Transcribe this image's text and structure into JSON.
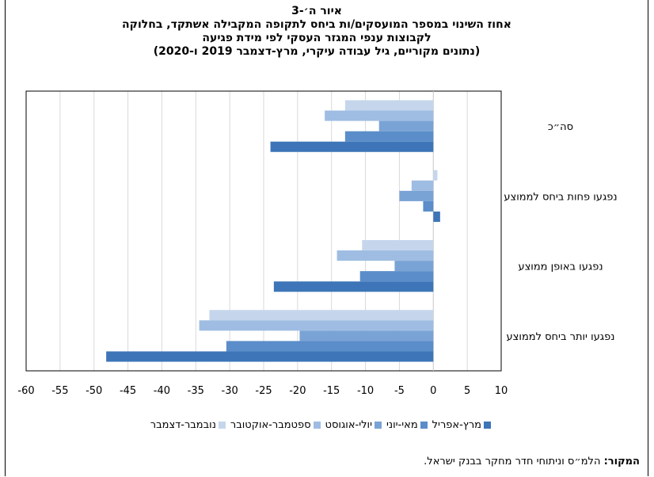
{
  "title": {
    "line1": "איור ה׳-3",
    "line2": "אחוז השינוי במספר המועסקים/ות ביחס לתקופה המקבילה אשתקד, בחלוקה",
    "line3": "לקבוצות ענפי המגזר העסקי לפי מידת פגיעה",
    "line4": "(נתונים מקוריים, גיל עבודה עיקרי,  מרץ-דצמבר 2019 ו-2020)"
  },
  "source": {
    "label": "המקור:",
    "text": "הלמ״ס וניתוחי חדר מחקר בבנק ישראל."
  },
  "chart_data": {
    "type": "bar",
    "orientation": "horizontal",
    "categories": [
      "סה״כ",
      "נפגעו פחות ביחס לממוצע",
      "נפגעו באופן ממוצע",
      "נפגעו יותר ביחס לממוצע"
    ],
    "series": [
      {
        "name": "נובמבר-דצמבר",
        "color": "#c5d6ec",
        "values": [
          -13,
          0.6,
          -10.5,
          -33
        ]
      },
      {
        "name": "ספטמבר-אוקטובר",
        "color": "#9fbde2",
        "values": [
          -16,
          -3.2,
          -14.2,
          -34.5
        ]
      },
      {
        "name": "יולי-אוגוסט",
        "color": "#7aa3d5",
        "values": [
          -8,
          -5,
          -5.7,
          -19.7
        ]
      },
      {
        "name": "מאי-יוני",
        "color": "#5a8dc9",
        "values": [
          -13,
          -1.5,
          -10.8,
          -30.5
        ]
      },
      {
        "name": "מרץ-אפריל",
        "color": "#3d75b8",
        "values": [
          -24,
          1,
          -23.5,
          -48.2
        ]
      }
    ],
    "xlim": [
      -60,
      10
    ],
    "xticks": [
      -60,
      -55,
      -50,
      -45,
      -40,
      -35,
      -30,
      -25,
      -20,
      -15,
      -10,
      -5,
      0,
      5,
      10
    ],
    "grid": true,
    "legend_position": "bottom"
  }
}
